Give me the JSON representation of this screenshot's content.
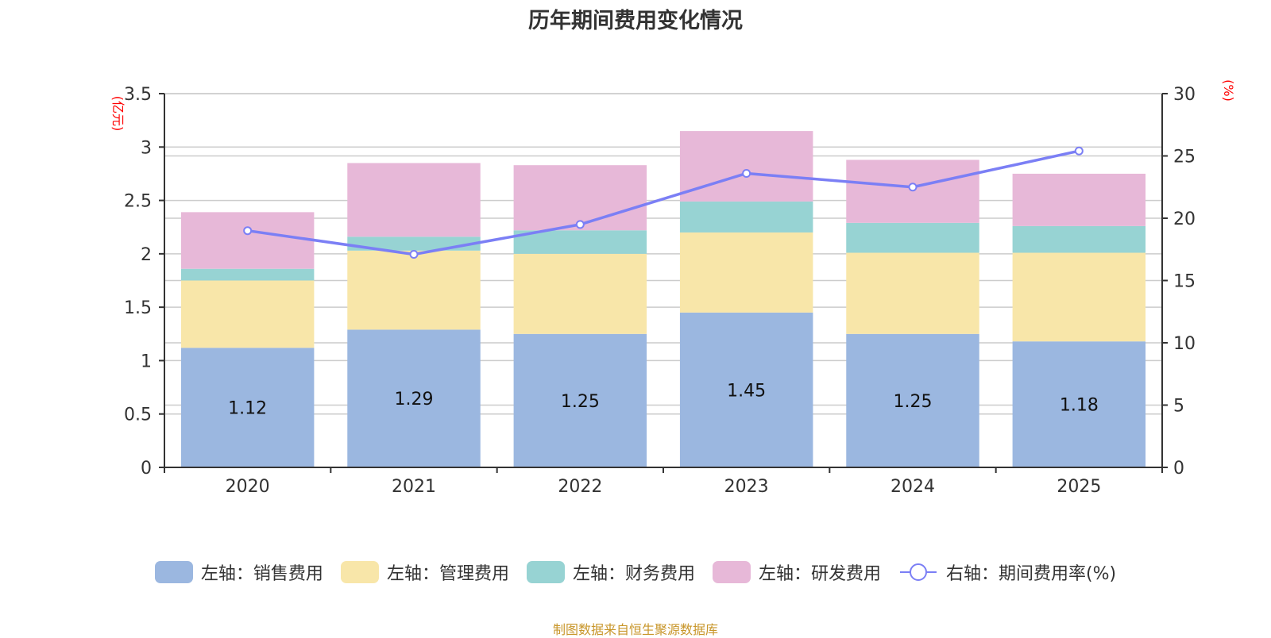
{
  "chart_data": {
    "type": "bar",
    "title": "历年期间费用变化情况",
    "categories": [
      "2020",
      "2021",
      "2022",
      "2023",
      "2024",
      "2025"
    ],
    "stacked": true,
    "left_axis": {
      "label": "(亿元)",
      "ylim": [
        0,
        3.5
      ],
      "ticks": [
        "0",
        "0.5",
        "1",
        "1.5",
        "2",
        "2.5",
        "3",
        "3.5"
      ],
      "tick_values": [
        0,
        0.5,
        1,
        1.5,
        2,
        2.5,
        3,
        3.5
      ]
    },
    "right_axis": {
      "label": "(%)",
      "ylim": [
        0,
        30
      ],
      "ticks": [
        "0",
        "5",
        "10",
        "15",
        "20",
        "25",
        "30"
      ],
      "tick_values": [
        0,
        5,
        10,
        15,
        20,
        25,
        30
      ]
    },
    "grid": true,
    "legend_position": "bottom",
    "series": [
      {
        "name": "左轴：销售费用",
        "type": "bar",
        "axis": "left",
        "color": "#9bb7e0",
        "values": [
          1.12,
          1.29,
          1.25,
          1.45,
          1.25,
          1.18
        ],
        "data_labels": [
          "1.12",
          "1.29",
          "1.25",
          "1.45",
          "1.25",
          "1.18"
        ]
      },
      {
        "name": "左轴：管理费用",
        "type": "bar",
        "axis": "left",
        "color": "#f8e6a9",
        "values": [
          0.63,
          0.74,
          0.75,
          0.75,
          0.76,
          0.83
        ]
      },
      {
        "name": "左轴：财务费用",
        "type": "bar",
        "axis": "left",
        "color": "#97d3d3",
        "values": [
          0.11,
          0.13,
          0.22,
          0.29,
          0.28,
          0.25
        ]
      },
      {
        "name": "左轴：研发费用",
        "type": "bar",
        "axis": "left",
        "color": "#e7b8d8",
        "values": [
          0.53,
          0.69,
          0.61,
          0.66,
          0.59,
          0.49
        ]
      },
      {
        "name": "右轴：期间费用率(%)",
        "type": "line",
        "axis": "right",
        "color": "#7b7ff5",
        "values": [
          19.0,
          17.1,
          19.5,
          23.6,
          22.5,
          25.4
        ]
      }
    ]
  },
  "footer": "制图数据来自恒生聚源数据库",
  "colors": {
    "axis_label": "#ff0000",
    "footer": "#c8962a",
    "grid": "#cccccc"
  }
}
